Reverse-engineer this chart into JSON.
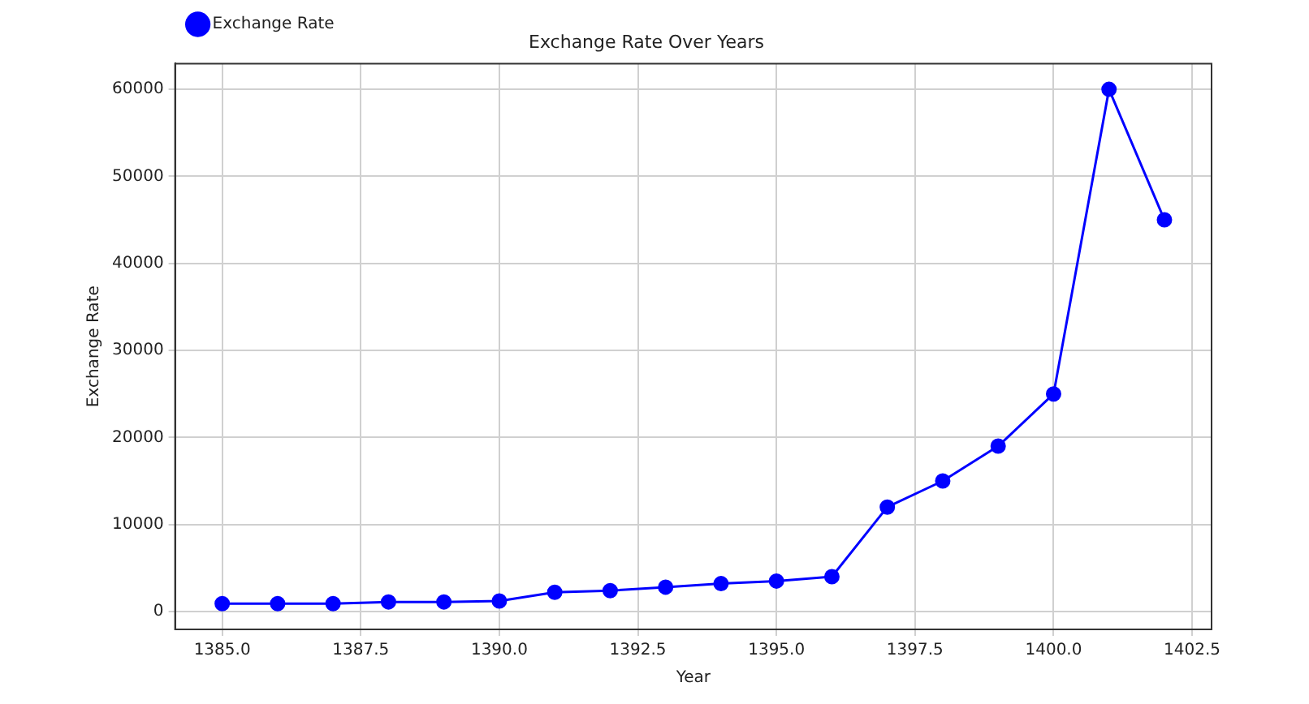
{
  "chart_data": {
    "type": "line",
    "title": "Exchange Rate Over Years",
    "xlabel": "Year",
    "ylabel": "Exchange Rate",
    "x": [
      1385,
      1386,
      1387,
      1388,
      1389,
      1390,
      1391,
      1392,
      1393,
      1394,
      1395,
      1396,
      1397,
      1398,
      1399,
      1400,
      1401,
      1402
    ],
    "series": [
      {
        "name": "Exchange Rate",
        "color": "#0000ff",
        "values": [
          900,
          900,
          900,
          1100,
          1100,
          1200,
          2200,
          2400,
          2800,
          3200,
          3500,
          4000,
          12000,
          15000,
          19000,
          25000,
          60000,
          45000
        ]
      }
    ],
    "xlim": [
      1384.15,
      1402.85
    ],
    "xticks": [
      {
        "value": 1385,
        "label": "1385.0"
      },
      {
        "value": 1387.5,
        "label": "1387.5"
      },
      {
        "value": 1390,
        "label": "1390.0"
      },
      {
        "value": 1392.5,
        "label": "1392.5"
      },
      {
        "value": 1395,
        "label": "1395.0"
      },
      {
        "value": 1397.5,
        "label": "1397.5"
      },
      {
        "value": 1400,
        "label": "1400.0"
      },
      {
        "value": 1402.5,
        "label": "1402.5"
      }
    ],
    "ylim": [
      -2055,
      62955
    ],
    "yticks": [
      0,
      10000,
      20000,
      30000,
      40000,
      50000,
      60000
    ],
    "grid": true,
    "legend": "top left",
    "marker": "circle",
    "line_style": "solid"
  }
}
